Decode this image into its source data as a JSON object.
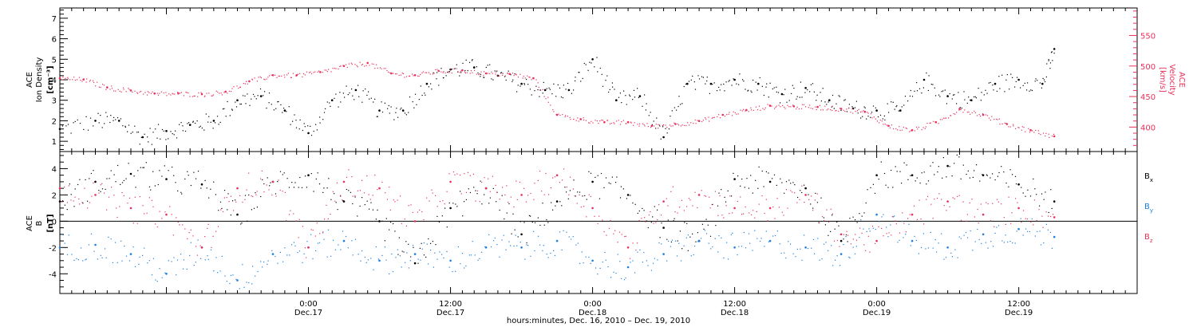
{
  "colors": {
    "black": "#000000",
    "red": "#e8305a",
    "blue": "#1a7fe0"
  },
  "time_axis": {
    "start": "2010-12-16 03:00",
    "end": "2010-12-19 22:00",
    "label": "hours:minutes, Dec. 16, 2010 – Dec. 19, 2010",
    "ticks": [
      {
        "t": "2010-12-17 00:00",
        "time": "0:00",
        "date": "Dec.17"
      },
      {
        "t": "2010-12-17 12:00",
        "time": "12:00",
        "date": "Dec.17"
      },
      {
        "t": "2010-12-18 00:00",
        "time": "0:00",
        "date": "Dec.18"
      },
      {
        "t": "2010-12-18 12:00",
        "time": "12:00",
        "date": "Dec.18"
      },
      {
        "t": "2010-12-19 00:00",
        "time": "0:00",
        "date": "Dec.19"
      },
      {
        "t": "2010-12-19 12:00",
        "time": "12:00",
        "date": "Dec.19"
      }
    ]
  },
  "chart_data": [
    {
      "type": "scatter",
      "panel": "top",
      "ylabel_left": [
        "ACE",
        "Ion Density",
        "[cm⁻³]"
      ],
      "ylabel_right": [
        "ACE",
        "Velocity",
        "[km/s]"
      ],
      "ylim_left": [
        0.5,
        7.5
      ],
      "yticks_left": [
        "1",
        "2",
        "3",
        "4",
        "5",
        "6",
        "7"
      ],
      "ylim_right": [
        360,
        595
      ],
      "yticks_right": [
        "400",
        "450",
        "500",
        "550"
      ],
      "series": [
        {
          "name": "",
          "axis": "left",
          "color": "black",
          "x": [
            "2010-12-16 03:00",
            "2010-12-16 06:00",
            "2010-12-16 08:00",
            "2010-12-16 10:00",
            "2010-12-16 12:00",
            "2010-12-16 14:00",
            "2010-12-16 16:00",
            "2010-12-16 18:00",
            "2010-12-16 20:00",
            "2010-12-16 22:00",
            "2010-12-17 00:00",
            "2010-12-17 02:00",
            "2010-12-17 04:00",
            "2010-12-17 06:00",
            "2010-12-17 08:00",
            "2010-12-17 10:00",
            "2010-12-17 12:00",
            "2010-12-17 14:00",
            "2010-12-17 16:00",
            "2010-12-17 18:00",
            "2010-12-17 20:00",
            "2010-12-17 22:00",
            "2010-12-18 00:00",
            "2010-12-18 02:00",
            "2010-12-18 04:00",
            "2010-12-18 06:00",
            "2010-12-18 08:00",
            "2010-12-18 10:00",
            "2010-12-18 12:00",
            "2010-12-18 14:00",
            "2010-12-18 16:00",
            "2010-12-18 18:00",
            "2010-12-18 20:00",
            "2010-12-18 22:00",
            "2010-12-19 00:00",
            "2010-12-19 02:00",
            "2010-12-19 04:00",
            "2010-12-19 06:00",
            "2010-12-19 08:00",
            "2010-12-19 10:00",
            "2010-12-19 12:00",
            "2010-12-19 14:00",
            "2010-12-19 15:00"
          ],
          "y": [
            1.6,
            2.0,
            2.0,
            1.2,
            1.5,
            1.8,
            2.0,
            3.0,
            3.2,
            2.5,
            1.4,
            3.0,
            3.5,
            2.5,
            2.5,
            3.8,
            4.5,
            4.6,
            4.2,
            3.8,
            3.5,
            3.5,
            5.0,
            3.0,
            3.2,
            1.2,
            3.8,
            3.8,
            4.0,
            3.8,
            3.3,
            3.6,
            3.0,
            2.6,
            2.5,
            2.5,
            4.0,
            3.2,
            3.0,
            3.8,
            4.0,
            3.8,
            5.5
          ]
        },
        {
          "name": "",
          "axis": "right",
          "color": "red",
          "x": [
            "2010-12-16 03:00",
            "2010-12-16 05:00",
            "2010-12-16 07:00",
            "2010-12-16 09:00",
            "2010-12-16 11:00",
            "2010-12-16 13:00",
            "2010-12-16 15:00",
            "2010-12-16 17:00",
            "2010-12-16 19:00",
            "2010-12-16 21:00",
            "2010-12-16 23:00",
            "2010-12-17 01:00",
            "2010-12-17 03:00",
            "2010-12-17 05:00",
            "2010-12-17 07:00",
            "2010-12-17 09:00",
            "2010-12-17 11:00",
            "2010-12-17 13:00",
            "2010-12-17 15:00",
            "2010-12-17 17:00",
            "2010-12-17 19:00",
            "2010-12-17 21:00",
            "2010-12-17 23:00",
            "2010-12-18 01:00",
            "2010-12-18 03:00",
            "2010-12-18 05:00",
            "2010-12-18 07:00",
            "2010-12-18 09:00",
            "2010-12-18 11:00",
            "2010-12-18 13:00",
            "2010-12-18 15:00",
            "2010-12-18 17:00",
            "2010-12-18 19:00",
            "2010-12-18 21:00",
            "2010-12-18 23:00",
            "2010-12-19 01:00",
            "2010-12-19 03:00",
            "2010-12-19 05:00",
            "2010-12-19 07:00",
            "2010-12-19 09:00",
            "2010-12-19 11:00",
            "2010-12-19 13:00",
            "2010-12-19 15:00"
          ],
          "y": [
            480,
            478,
            465,
            460,
            455,
            455,
            454,
            458,
            475,
            485,
            485,
            490,
            500,
            505,
            488,
            485,
            492,
            493,
            488,
            487,
            480,
            420,
            413,
            408,
            408,
            402,
            405,
            410,
            420,
            428,
            435,
            434,
            433,
            430,
            425,
            402,
            395,
            408,
            430,
            420,
            405,
            395,
            385
          ]
        }
      ]
    },
    {
      "type": "scatter",
      "panel": "bottom",
      "ylabel_left": [
        "ACE",
        "B",
        "[nT]"
      ],
      "ylim": [
        -5.5,
        5.3
      ],
      "yticks": [
        "-4",
        "-2",
        "0",
        "2",
        "4"
      ],
      "series": [
        {
          "name": "Bx",
          "color": "black",
          "x": [
            "2010-12-16 03:00",
            "2010-12-16 06:00",
            "2010-12-16 09:00",
            "2010-12-16 12:00",
            "2010-12-16 15:00",
            "2010-12-16 18:00",
            "2010-12-16 21:00",
            "2010-12-17 00:00",
            "2010-12-17 03:00",
            "2010-12-17 06:00",
            "2010-12-17 09:00",
            "2010-12-17 12:00",
            "2010-12-17 15:00",
            "2010-12-17 18:00",
            "2010-12-17 21:00",
            "2010-12-18 00:00",
            "2010-12-18 03:00",
            "2010-12-18 06:00",
            "2010-12-18 09:00",
            "2010-12-18 12:00",
            "2010-12-18 15:00",
            "2010-12-18 18:00",
            "2010-12-18 21:00",
            "2010-12-19 00:00",
            "2010-12-19 03:00",
            "2010-12-19 06:00",
            "2010-12-19 09:00",
            "2010-12-19 12:00",
            "2010-12-19 15:00"
          ],
          "y": [
            1.5,
            3.0,
            3.6,
            3.2,
            2.8,
            0.5,
            3.0,
            3.5,
            1.5,
            0.0,
            -3.2,
            1.0,
            2.5,
            -1.0,
            1.5,
            3.0,
            2.0,
            -0.5,
            -1.5,
            3.2,
            3.0,
            2.5,
            -1.5,
            3.5,
            3.5,
            4.2,
            3.5,
            2.8,
            1.5
          ]
        },
        {
          "name": "By",
          "color": "blue",
          "x": [
            "2010-12-16 03:00",
            "2010-12-16 06:00",
            "2010-12-16 09:00",
            "2010-12-16 12:00",
            "2010-12-16 15:00",
            "2010-12-16 18:00",
            "2010-12-16 21:00",
            "2010-12-17 00:00",
            "2010-12-17 03:00",
            "2010-12-17 06:00",
            "2010-12-17 09:00",
            "2010-12-17 12:00",
            "2010-12-17 15:00",
            "2010-12-17 18:00",
            "2010-12-17 21:00",
            "2010-12-18 00:00",
            "2010-12-18 03:00",
            "2010-12-18 06:00",
            "2010-12-18 09:00",
            "2010-12-18 12:00",
            "2010-12-18 15:00",
            "2010-12-18 18:00",
            "2010-12-18 21:00",
            "2010-12-19 00:00",
            "2010-12-19 03:00",
            "2010-12-19 06:00",
            "2010-12-19 09:00",
            "2010-12-19 12:00",
            "2010-12-19 15:00"
          ],
          "y": [
            -2.0,
            -1.8,
            -2.5,
            -4.0,
            -2.0,
            -4.5,
            -2.5,
            -2.0,
            -1.5,
            -3.0,
            -2.5,
            -3.0,
            -2.0,
            -2.0,
            -1.5,
            -3.0,
            -3.5,
            -2.5,
            -1.5,
            -2.0,
            -1.5,
            -2.0,
            -2.5,
            0.5,
            -1.5,
            -2.0,
            -1.0,
            -0.6,
            -1.2
          ]
        },
        {
          "name": "Bz",
          "color": "red",
          "x": [
            "2010-12-16 03:00",
            "2010-12-16 06:00",
            "2010-12-16 09:00",
            "2010-12-16 12:00",
            "2010-12-16 15:00",
            "2010-12-16 18:00",
            "2010-12-16 21:00",
            "2010-12-17 00:00",
            "2010-12-17 03:00",
            "2010-12-17 06:00",
            "2010-12-17 09:00",
            "2010-12-17 12:00",
            "2010-12-17 15:00",
            "2010-12-17 18:00",
            "2010-12-17 21:00",
            "2010-12-18 00:00",
            "2010-12-18 03:00",
            "2010-12-18 06:00",
            "2010-12-18 09:00",
            "2010-12-18 12:00",
            "2010-12-18 15:00",
            "2010-12-18 18:00",
            "2010-12-18 21:00",
            "2010-12-19 00:00",
            "2010-12-19 03:00",
            "2010-12-19 06:00",
            "2010-12-19 09:00",
            "2010-12-19 12:00",
            "2010-12-19 15:00"
          ],
          "y": [
            2.5,
            2.0,
            1.0,
            0.5,
            -2.0,
            2.5,
            3.0,
            -2.0,
            3.0,
            2.5,
            0.0,
            3.0,
            2.5,
            2.0,
            3.5,
            1.0,
            -2.0,
            1.5,
            2.0,
            1.0,
            1.0,
            2.0,
            -1.0,
            -1.5,
            0.5,
            1.5,
            0.5,
            1.0,
            0.3
          ]
        }
      ]
    }
  ]
}
